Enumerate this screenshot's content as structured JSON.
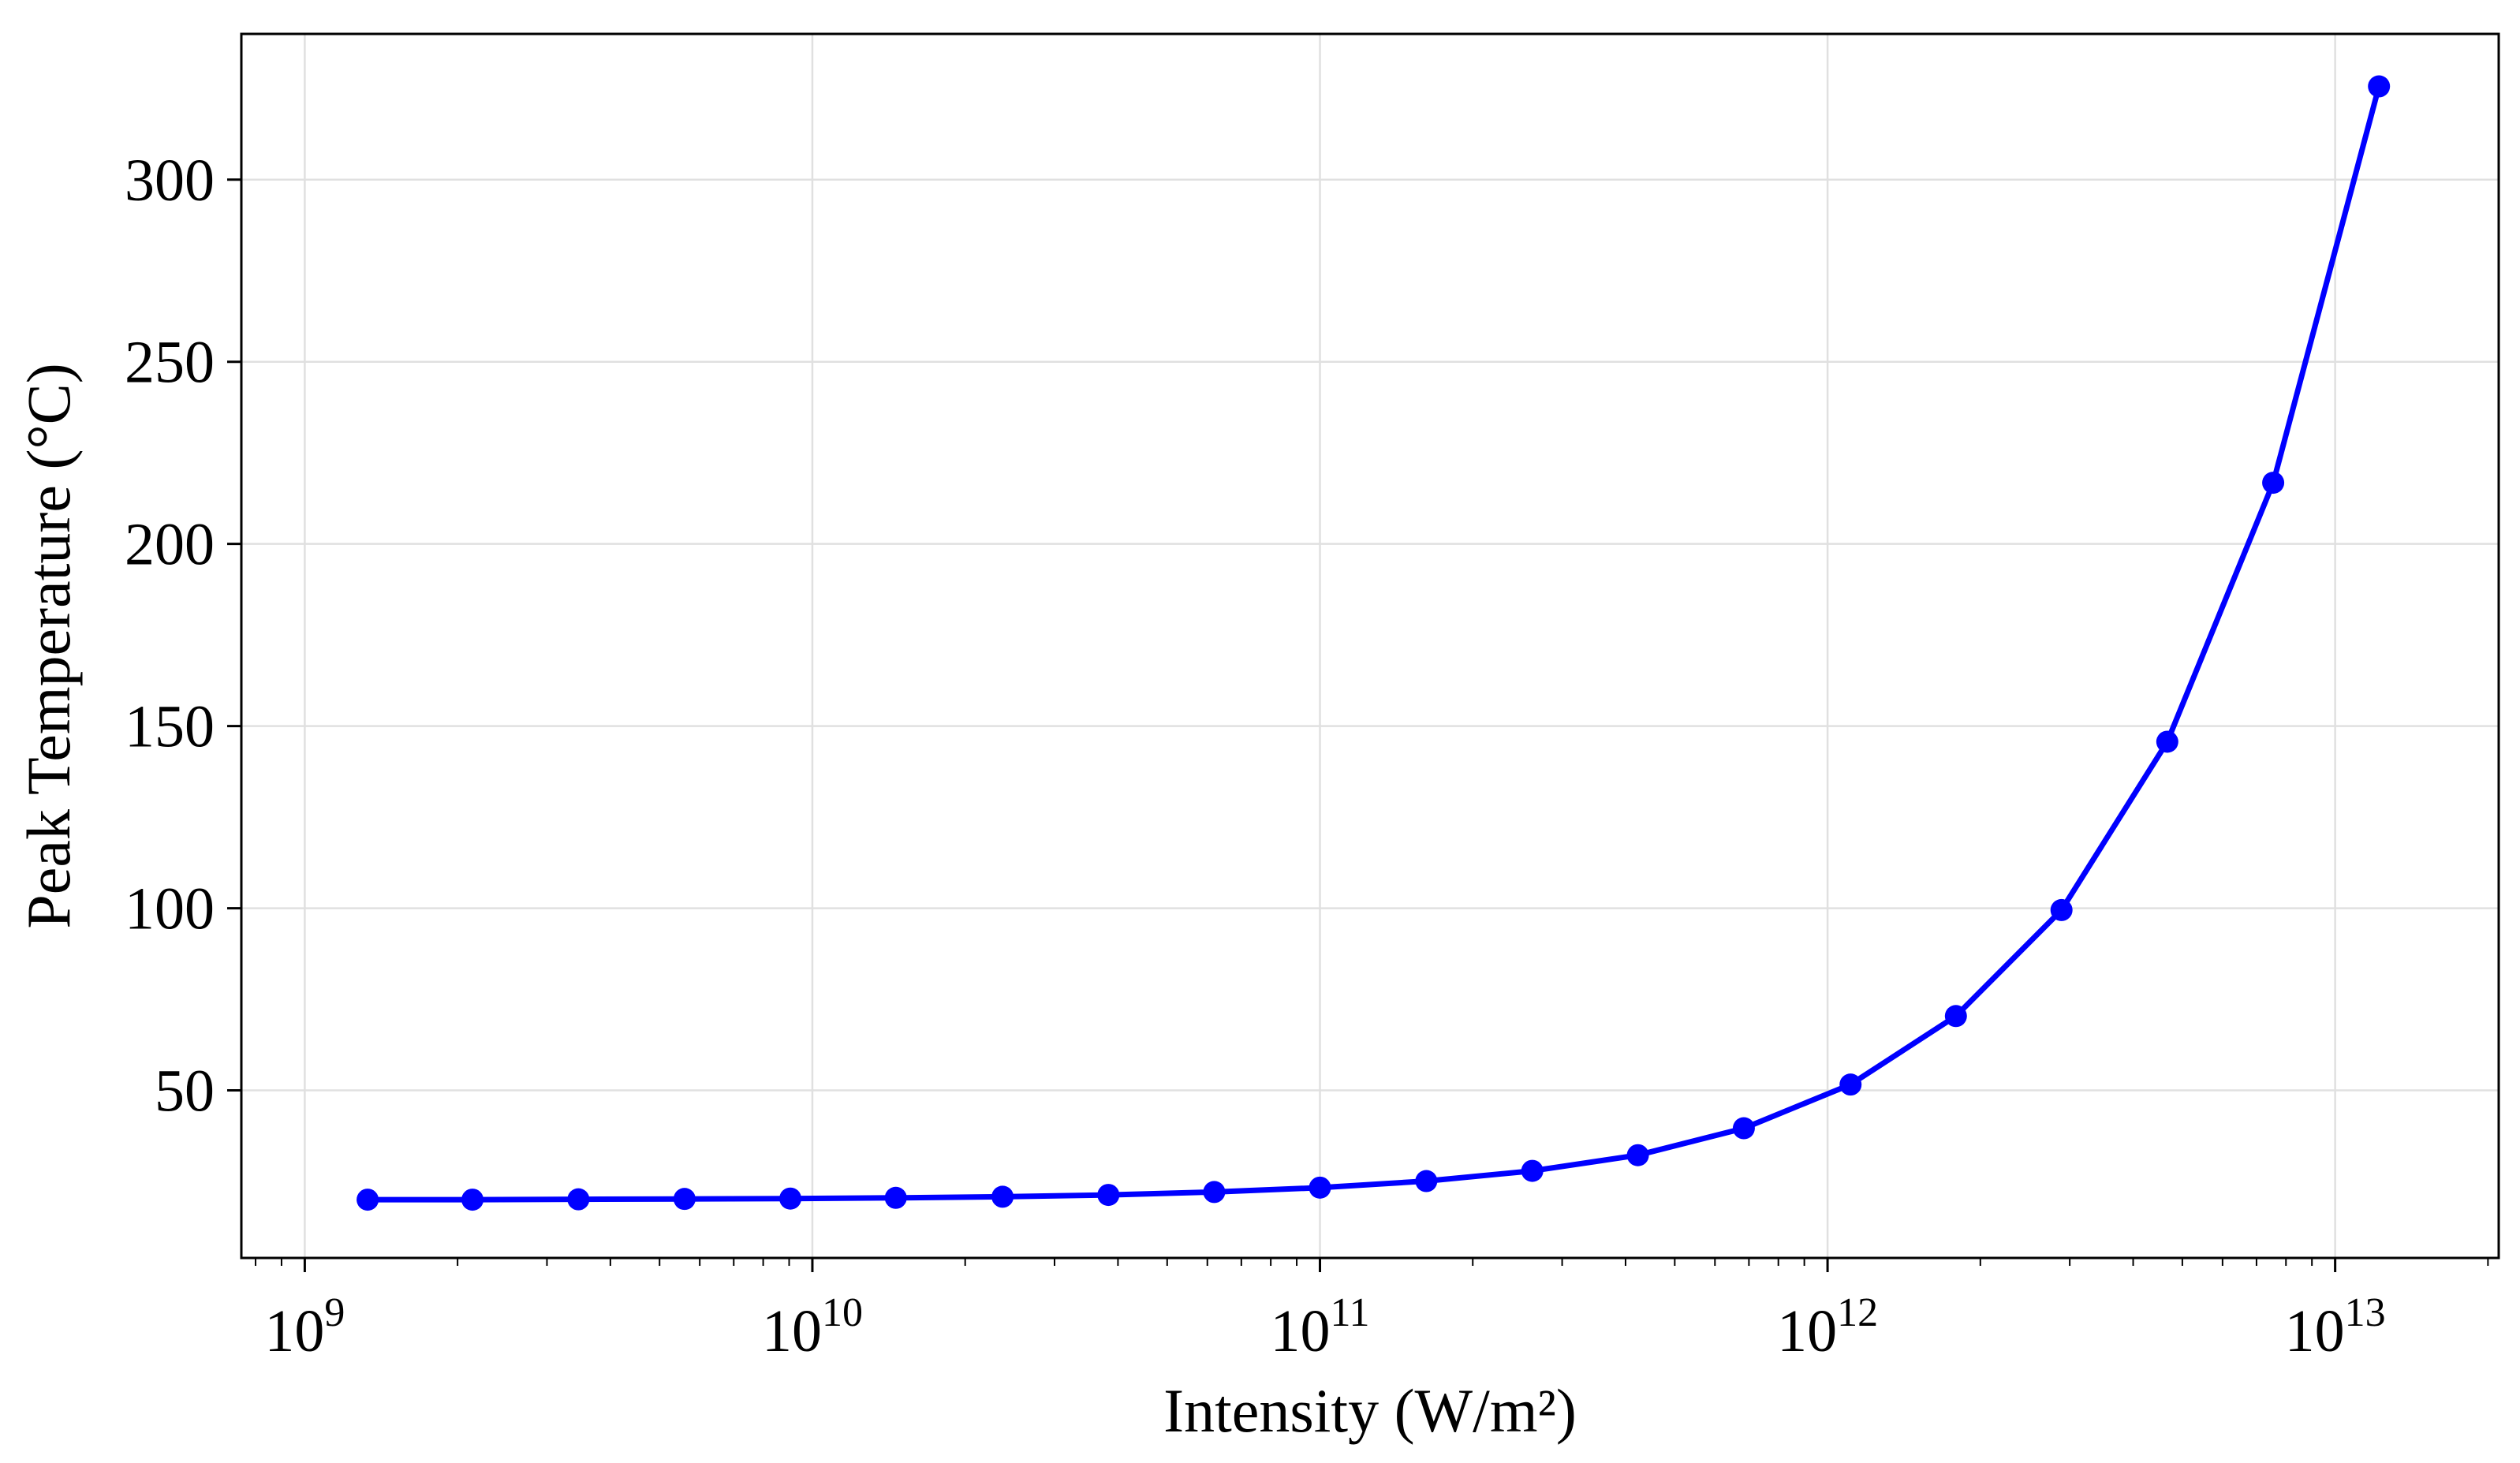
{
  "chart_data": {
    "type": "line",
    "title": "",
    "xlabel": "Intensity (W/m²)",
    "ylabel": "Peak Temperature (°C)",
    "xscale": "log",
    "xlim": [
      750000000.0,
      21000000000000.0
    ],
    "ylim": [
      4,
      340
    ],
    "grid": true,
    "color": "#0000ff",
    "x_ticks": [
      {
        "value": 1000000000.0,
        "base": "10",
        "exp": "9"
      },
      {
        "value": 10000000000.0,
        "base": "10",
        "exp": "10"
      },
      {
        "value": 100000000000.0,
        "base": "10",
        "exp": "11"
      },
      {
        "value": 1000000000000.0,
        "base": "10",
        "exp": "12"
      },
      {
        "value": 10000000000000.0,
        "base": "10",
        "exp": "13"
      }
    ],
    "y_ticks": [
      50,
      100,
      150,
      200,
      250,
      300
    ],
    "series": [
      {
        "name": "Peak Temperature",
        "x": [
          1330000000.0,
          2140000000.0,
          3460000000.0,
          5600000000.0,
          9050000000.0,
          14600000000.0,
          23700000000.0,
          38300000000.0,
          61900000000.0,
          100000000000.0,
          162000000000.0,
          262000000000.0,
          423000000000.0,
          684000000000.0,
          1110000000000.0,
          1790000000000.0,
          2890000000000.0,
          4670000000000.0,
          7550000000000.0,
          12200000000000.0
        ],
        "y": [
          20,
          20,
          20.1,
          20.2,
          20.3,
          20.5,
          20.8,
          21.3,
          22.1,
          23.3,
          25.1,
          27.9,
          32.2,
          39.6,
          51.6,
          70.4,
          99.5,
          145.7,
          216.8,
          325.6
        ]
      }
    ]
  }
}
